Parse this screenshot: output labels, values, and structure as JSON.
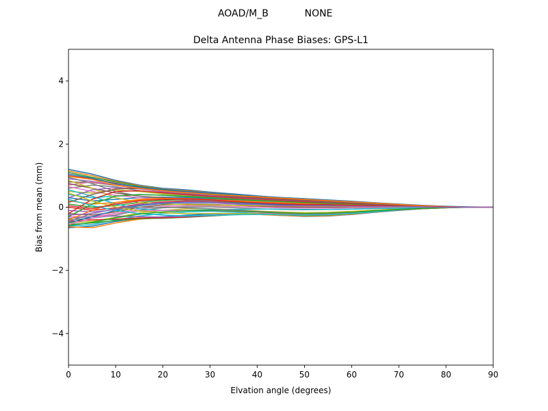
{
  "figure": {
    "suptitle_left": "AOAD/M_B",
    "suptitle_right": "NONE"
  },
  "chart_data": {
    "type": "line",
    "title": "Delta Antenna Phase Biases: GPS-L1",
    "xlabel": "Elvation angle (degrees)",
    "ylabel": "Bias from mean (mm)",
    "xlim": [
      0,
      90
    ],
    "ylim": [
      -5,
      5
    ],
    "xticks": [
      0,
      10,
      20,
      30,
      40,
      50,
      60,
      70,
      80,
      90
    ],
    "yticks": [
      -4,
      -2,
      0,
      2,
      4
    ],
    "xtick_labels": [
      "0",
      "10",
      "20",
      "30",
      "40",
      "50",
      "60",
      "70",
      "80",
      "90"
    ],
    "ytick_labels": [
      "−4",
      "−2",
      "0",
      "2",
      "4"
    ],
    "grid": false,
    "legend": "none",
    "x": [
      0,
      5,
      10,
      15,
      20,
      25,
      30,
      35,
      40,
      45,
      50,
      55,
      60,
      65,
      70,
      75,
      80,
      85,
      90
    ],
    "palette": [
      "#1f77b4",
      "#ff7f0e",
      "#2ca02c",
      "#d62728",
      "#9467bd",
      "#8c564b",
      "#e377c2",
      "#7f7f7f",
      "#bcbd22",
      "#17becf"
    ],
    "series": [
      {
        "values": [
          1.2,
          1.05,
          0.85,
          0.7,
          0.6,
          0.55,
          0.48,
          0.42,
          0.36,
          0.3,
          0.26,
          0.22,
          0.18,
          0.13,
          0.09,
          0.05,
          0.02,
          0.0,
          0.0
        ]
      },
      {
        "values": [
          1.15,
          1.0,
          0.82,
          0.68,
          0.58,
          0.52,
          0.46,
          0.4,
          0.35,
          0.3,
          0.25,
          0.21,
          0.17,
          0.12,
          0.08,
          0.05,
          0.02,
          0.0,
          0.0
        ]
      },
      {
        "values": [
          1.1,
          0.95,
          0.8,
          0.66,
          0.57,
          0.5,
          0.44,
          0.38,
          0.33,
          0.28,
          0.24,
          0.2,
          0.16,
          0.12,
          0.08,
          0.04,
          0.02,
          0.0,
          0.0
        ]
      },
      {
        "values": [
          1.0,
          0.9,
          0.76,
          0.62,
          0.54,
          0.47,
          0.41,
          0.36,
          0.31,
          0.26,
          0.22,
          0.18,
          0.15,
          0.11,
          0.07,
          0.04,
          0.01,
          0.0,
          0.0
        ]
      },
      {
        "values": [
          0.9,
          0.82,
          0.72,
          0.6,
          0.51,
          0.45,
          0.39,
          0.34,
          0.29,
          0.25,
          0.21,
          0.17,
          0.14,
          0.1,
          0.07,
          0.04,
          0.01,
          0.0,
          0.0
        ]
      },
      {
        "values": [
          0.8,
          0.78,
          0.7,
          0.58,
          0.49,
          0.43,
          0.37,
          0.32,
          0.27,
          0.23,
          0.2,
          0.16,
          0.13,
          0.1,
          0.06,
          0.03,
          0.01,
          0.0,
          0.0
        ]
      },
      {
        "values": [
          0.7,
          0.8,
          0.72,
          0.6,
          0.48,
          0.4,
          0.34,
          0.29,
          0.25,
          0.21,
          0.18,
          0.15,
          0.12,
          0.09,
          0.06,
          0.03,
          0.01,
          0.0,
          0.0
        ]
      },
      {
        "values": [
          0.6,
          0.7,
          0.65,
          0.52,
          0.44,
          0.38,
          0.32,
          0.27,
          0.23,
          0.2,
          0.17,
          0.14,
          0.11,
          0.08,
          0.05,
          0.03,
          0.01,
          0.0,
          0.0
        ]
      },
      {
        "values": [
          0.5,
          0.45,
          0.55,
          0.5,
          0.42,
          0.35,
          0.3,
          0.25,
          0.21,
          0.18,
          0.15,
          0.12,
          0.1,
          0.07,
          0.05,
          0.03,
          0.01,
          0.0,
          0.0
        ]
      },
      {
        "values": [
          0.4,
          0.3,
          0.35,
          0.4,
          0.38,
          0.33,
          0.28,
          0.23,
          0.19,
          0.16,
          0.13,
          0.11,
          0.09,
          0.06,
          0.04,
          0.02,
          0.01,
          0.0,
          0.0
        ]
      },
      {
        "values": [
          0.3,
          0.2,
          0.25,
          0.3,
          0.32,
          0.3,
          0.26,
          0.21,
          0.17,
          0.14,
          0.12,
          0.1,
          0.08,
          0.06,
          0.04,
          0.02,
          0.01,
          0.0,
          0.0
        ]
      },
      {
        "values": [
          0.2,
          0.1,
          0.15,
          0.22,
          0.28,
          0.28,
          0.24,
          0.19,
          0.15,
          0.12,
          0.1,
          0.08,
          0.07,
          0.05,
          0.03,
          0.02,
          0.0,
          0.0,
          0.0
        ]
      },
      {
        "values": [
          0.1,
          0.0,
          0.05,
          0.15,
          0.22,
          0.24,
          0.21,
          0.16,
          0.12,
          0.1,
          0.08,
          0.07,
          0.05,
          0.04,
          0.03,
          0.02,
          0.0,
          0.0,
          0.0
        ]
      },
      {
        "values": [
          0.0,
          -0.1,
          -0.02,
          0.1,
          0.17,
          0.2,
          0.18,
          0.13,
          0.09,
          0.07,
          0.06,
          0.05,
          0.04,
          0.03,
          0.02,
          0.01,
          0.0,
          0.0,
          0.0
        ]
      },
      {
        "values": [
          -0.1,
          -0.15,
          -0.08,
          0.05,
          0.12,
          0.15,
          0.14,
          0.1,
          0.06,
          0.04,
          0.03,
          0.03,
          0.02,
          0.02,
          0.01,
          0.01,
          0.0,
          0.0,
          0.0
        ]
      },
      {
        "values": [
          -0.2,
          -0.25,
          -0.15,
          0.0,
          0.07,
          0.1,
          0.09,
          0.06,
          0.03,
          0.01,
          0.0,
          0.0,
          0.0,
          0.0,
          0.0,
          0.0,
          0.0,
          0.0,
          0.0
        ]
      },
      {
        "values": [
          -0.3,
          -0.3,
          -0.2,
          -0.05,
          0.02,
          0.05,
          0.05,
          0.02,
          0.0,
          -0.02,
          -0.03,
          -0.03,
          -0.02,
          -0.02,
          -0.01,
          0.0,
          0.0,
          0.0,
          0.0
        ]
      },
      {
        "values": [
          -0.4,
          -0.35,
          -0.25,
          -0.1,
          -0.02,
          0.01,
          0.01,
          -0.02,
          -0.05,
          -0.07,
          -0.08,
          -0.07,
          -0.06,
          -0.04,
          -0.03,
          -0.02,
          -0.01,
          0.0,
          0.0
        ]
      },
      {
        "values": [
          -0.5,
          -0.45,
          -0.32,
          -0.18,
          -0.1,
          -0.05,
          -0.05,
          -0.08,
          -0.12,
          -0.15,
          -0.17,
          -0.16,
          -0.13,
          -0.09,
          -0.06,
          -0.04,
          -0.02,
          0.0,
          0.0
        ]
      },
      {
        "values": [
          -0.6,
          -0.55,
          -0.4,
          -0.28,
          -0.2,
          -0.15,
          -0.13,
          -0.16,
          -0.2,
          -0.24,
          -0.27,
          -0.26,
          -0.21,
          -0.15,
          -0.09,
          -0.05,
          -0.02,
          0.0,
          0.0
        ]
      },
      {
        "values": [
          -0.65,
          -0.6,
          -0.45,
          -0.35,
          -0.3,
          -0.25,
          -0.22,
          -0.2,
          -0.22,
          -0.26,
          -0.29,
          -0.28,
          -0.23,
          -0.16,
          -0.1,
          -0.05,
          -0.02,
          0.0,
          0.0
        ]
      },
      {
        "values": [
          -0.62,
          -0.65,
          -0.5,
          -0.38,
          -0.33,
          -0.3,
          -0.27,
          -0.23,
          -0.23,
          -0.26,
          -0.28,
          -0.27,
          -0.22,
          -0.15,
          -0.09,
          -0.05,
          -0.02,
          0.0,
          0.0
        ]
      },
      {
        "values": [
          -0.55,
          -0.5,
          -0.42,
          -0.36,
          -0.35,
          -0.32,
          -0.28,
          -0.24,
          -0.22,
          -0.24,
          -0.26,
          -0.25,
          -0.2,
          -0.14,
          -0.08,
          -0.04,
          -0.01,
          0.0,
          0.0
        ]
      },
      {
        "values": [
          -0.45,
          -0.4,
          -0.38,
          -0.34,
          -0.34,
          -0.31,
          -0.27,
          -0.23,
          -0.21,
          -0.22,
          -0.24,
          -0.23,
          -0.19,
          -0.13,
          -0.08,
          -0.04,
          -0.01,
          0.0,
          0.0
        ]
      },
      {
        "values": [
          -0.35,
          -0.3,
          -0.28,
          -0.3,
          -0.31,
          -0.29,
          -0.26,
          -0.22,
          -0.2,
          -0.21,
          -0.22,
          -0.21,
          -0.17,
          -0.12,
          -0.07,
          -0.03,
          -0.01,
          0.0,
          0.0
        ]
      },
      {
        "values": [
          0.75,
          0.6,
          0.45,
          0.35,
          0.3,
          0.27,
          0.25,
          0.22,
          0.2,
          0.17,
          0.15,
          0.13,
          0.11,
          0.08,
          0.05,
          0.03,
          0.01,
          0.0,
          0.0
        ]
      },
      {
        "values": [
          0.65,
          0.5,
          0.38,
          0.3,
          0.26,
          0.24,
          0.22,
          0.2,
          0.18,
          0.16,
          0.14,
          0.12,
          0.1,
          0.07,
          0.05,
          0.03,
          0.01,
          0.0,
          0.0
        ]
      },
      {
        "values": [
          0.95,
          0.75,
          0.5,
          0.35,
          0.28,
          0.23,
          0.2,
          0.18,
          0.16,
          0.14,
          0.12,
          0.1,
          0.08,
          0.06,
          0.04,
          0.02,
          0.01,
          0.0,
          0.0
        ]
      },
      {
        "values": [
          0.85,
          0.6,
          0.3,
          0.15,
          0.1,
          0.08,
          0.07,
          0.06,
          0.05,
          0.04,
          0.03,
          0.03,
          0.02,
          0.02,
          0.01,
          0.01,
          0.0,
          0.0,
          0.0
        ]
      },
      {
        "values": [
          0.55,
          0.35,
          0.1,
          -0.05,
          -0.1,
          -0.1,
          -0.08,
          -0.07,
          -0.06,
          -0.06,
          -0.07,
          -0.07,
          -0.06,
          -0.04,
          -0.03,
          -0.02,
          -0.01,
          0.0,
          0.0
        ]
      },
      {
        "values": [
          -0.5,
          -0.3,
          -0.1,
          0.05,
          0.12,
          0.15,
          0.15,
          0.13,
          0.11,
          0.09,
          0.08,
          0.07,
          0.06,
          0.04,
          0.03,
          0.02,
          0.01,
          0.0,
          0.0
        ]
      },
      {
        "values": [
          -0.4,
          -0.1,
          0.15,
          0.25,
          0.28,
          0.27,
          0.24,
          0.2,
          0.17,
          0.14,
          0.12,
          0.1,
          0.08,
          0.06,
          0.04,
          0.02,
          0.01,
          0.0,
          0.0
        ]
      },
      {
        "values": [
          -0.3,
          0.1,
          0.35,
          0.4,
          0.38,
          0.34,
          0.3,
          0.25,
          0.21,
          0.18,
          0.15,
          0.12,
          0.1,
          0.07,
          0.05,
          0.03,
          0.01,
          0.0,
          0.0
        ]
      },
      {
        "values": [
          -0.2,
          0.25,
          0.5,
          0.52,
          0.46,
          0.4,
          0.35,
          0.3,
          0.26,
          0.22,
          0.18,
          0.15,
          0.12,
          0.09,
          0.06,
          0.03,
          0.01,
          0.0,
          0.0
        ]
      },
      {
        "values": [
          0.3,
          0.55,
          0.62,
          0.58,
          0.5,
          0.44,
          0.38,
          0.33,
          0.28,
          0.24,
          0.2,
          0.16,
          0.13,
          0.09,
          0.06,
          0.03,
          0.01,
          0.0,
          0.0
        ]
      },
      {
        "values": [
          0.15,
          0.4,
          0.58,
          0.6,
          0.53,
          0.46,
          0.4,
          0.34,
          0.29,
          0.25,
          0.21,
          0.17,
          0.13,
          0.1,
          0.06,
          0.03,
          0.01,
          0.0,
          0.0
        ]
      },
      {
        "values": [
          -0.55,
          -0.35,
          -0.2,
          -0.12,
          -0.1,
          -0.1,
          -0.11,
          -0.13,
          -0.16,
          -0.19,
          -0.21,
          -0.2,
          -0.17,
          -0.12,
          -0.07,
          -0.04,
          -0.01,
          0.0,
          0.0
        ]
      },
      {
        "values": [
          -0.45,
          -0.2,
          -0.05,
          0.0,
          0.0,
          -0.02,
          -0.05,
          -0.09,
          -0.13,
          -0.17,
          -0.2,
          -0.19,
          -0.16,
          -0.11,
          -0.07,
          -0.03,
          -0.01,
          0.0,
          0.0
        ]
      },
      {
        "values": [
          0.45,
          0.2,
          0.0,
          -0.12,
          -0.18,
          -0.2,
          -0.2,
          -0.2,
          -0.21,
          -0.23,
          -0.25,
          -0.24,
          -0.2,
          -0.14,
          -0.08,
          -0.04,
          -0.01,
          0.0,
          0.0
        ]
      },
      {
        "values": [
          0.25,
          0.05,
          -0.1,
          -0.2,
          -0.25,
          -0.27,
          -0.26,
          -0.24,
          -0.23,
          -0.24,
          -0.25,
          -0.24,
          -0.2,
          -0.14,
          -0.08,
          -0.04,
          -0.01,
          0.0,
          0.0
        ]
      },
      {
        "values": [
          1.05,
          0.92,
          0.74,
          0.64,
          0.56,
          0.5,
          0.45,
          0.4,
          0.35,
          0.31,
          0.27,
          0.23,
          0.19,
          0.14,
          0.1,
          0.06,
          0.03,
          0.01,
          0.0
        ]
      },
      {
        "values": [
          0.98,
          0.88,
          0.7,
          0.6,
          0.52,
          0.46,
          0.41,
          0.37,
          0.33,
          0.29,
          0.25,
          0.21,
          0.17,
          0.13,
          0.09,
          0.05,
          0.02,
          0.0,
          0.0
        ]
      },
      {
        "values": [
          -0.58,
          -0.48,
          -0.34,
          -0.22,
          -0.15,
          -0.11,
          -0.1,
          -0.12,
          -0.15,
          -0.18,
          -0.2,
          -0.19,
          -0.16,
          -0.11,
          -0.07,
          -0.04,
          -0.01,
          0.0,
          0.0
        ]
      },
      {
        "values": [
          0.05,
          -0.05,
          0.1,
          0.2,
          0.25,
          0.26,
          0.23,
          0.18,
          0.14,
          0.11,
          0.09,
          0.08,
          0.06,
          0.05,
          0.03,
          0.02,
          0.01,
          0.0,
          0.0
        ]
      },
      {
        "values": [
          -0.25,
          -0.2,
          -0.05,
          0.08,
          0.14,
          0.17,
          0.16,
          0.12,
          0.08,
          0.05,
          0.04,
          0.04,
          0.03,
          0.02,
          0.02,
          0.01,
          0.0,
          0.0,
          0.0
        ]
      }
    ]
  }
}
